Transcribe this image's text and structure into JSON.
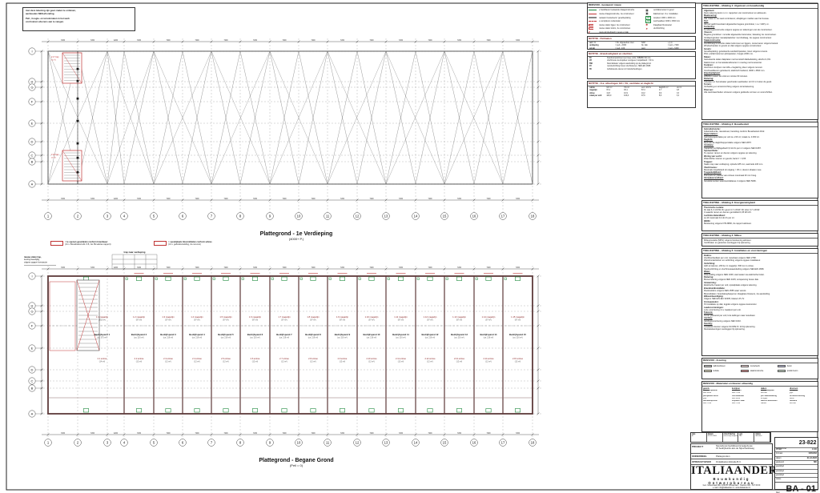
{
  "sheet": {
    "border_color": "#222222",
    "accent_red": "#c03434",
    "accent_green": "#1f8a3f",
    "wall_brown": "#5d3a3a"
  },
  "note_box": {
    "lines": [
      "Aan deze tekening zijn geen maten te ontlenen,",
      "aanhouden NEN-afronding.",
      "Peil-, hoogte- en terreinmaten in het werk",
      "controleren alvorens aan te vangen."
    ]
  },
  "plans": {
    "upper": {
      "title": "Plattegrond - 1e Verdieping",
      "subtitle": "(4000+ P.)"
    },
    "lower": {
      "title": "Plattegrond - Begane Grond",
      "subtitle": "(Peil = 0)"
    }
  },
  "grid": {
    "numbers": [
      "1",
      "2",
      "3",
      "4",
      "5",
      "6",
      "7",
      "8",
      "9",
      "10",
      "11",
      "12",
      "13",
      "14",
      "15",
      "16",
      "17",
      "18"
    ],
    "letters": [
      "I",
      "H",
      "G",
      "F",
      "E",
      "D",
      "C",
      "B",
      "A"
    ]
  },
  "dims": {
    "wide": "7200",
    "narrow": "4200"
  },
  "stair_note": {
    "table_title": "trap naar verdieping",
    "left_lines": [
      "nieuwe stalen trap,",
      "leuning tweezijdig,",
      "volgens opgave leverancier"
    ]
  },
  "red_keys": [
    {
      "line1": "= te openen geveldelen conform brandweer",
      "line2": "(t.b.v. Bouwbesluit afd. 6.8, zie RV-advies rapport)"
    },
    {
      "line1": "= opstelplaats blusmiddelen conform advies",
      "line2": "(t.b.v. gebruiksmelding, zie renvooi)"
    }
  ],
  "legend": {
    "title": "RENVOOI - bestaand / nieuw",
    "left": [
      {
        "style": "line-green",
        "label": "te handhaven bestaande draagconstructie"
      },
      {
        "style": "line-red",
        "label": "nieuwe draagconstructie, zie constructeur"
      },
      {
        "style": "line-gray",
        "label": "bestaand metselwerk / gevelbeplating"
      },
      {
        "style": "dash-red",
        "label": "te verwijderen onderdelen"
      },
      {
        "style": "bracket-red",
        "label": "nieuwe stalen ligger, zie constructeur"
      },
      {
        "style": "bracket-red",
        "label": "nieuwe stalen kolom, zie constructeur"
      },
      {
        "style": "angle-red",
        "label": "nieuw windverband in gevel en dak"
      }
    ],
    "right": [
      {
        "glyph": "▦",
        "color": "#111111",
        "label": "ventilatierooster in gevel"
      },
      {
        "glyph": "▣",
        "color": "#111111",
        "label": "dakdoorvoer t.b.v. installaties"
      },
      {
        "glyph": "LD",
        "color": "#1f8a3f",
        "box": true,
        "label": "loopdeur 1000 x 2300 mm"
      },
      {
        "glyph": "OD",
        "color": "#1f8a3f",
        "box": true,
        "label": "overheaddeur 4000 x 4500 mm"
      },
      {
        "glyph": "✱",
        "color": "#c03434",
        "label": "draagbaar blustoestel"
      },
      {
        "glyph": "➤",
        "color": "#c03434",
        "label": "vluchtrichting"
      }
    ]
  },
  "notes": [
    {
      "title": "NOTITIE - Peilmaten",
      "rows": [
        [
          "peil = 0",
          "= bk. afgewerkte vloer",
          "NAP",
          "+ p.m."
        ],
        [
          "verdieping",
          "= peil + 4000",
          "bk. dak",
          "= peil + 7200"
        ],
        [
          "terrein",
          "= peil - 100",
          "goot",
          "= peil + 6400"
        ]
      ]
    },
    {
      "title": "NOTITIE - Brandveiligheid en vluchten",
      "rows": [
        [
          "BC",
          "brandcompartiment per twee units, WBDBO 60 min."
        ],
        [
          "VR",
          "vluchtroute via loopdeur voorgevel, loopafstand < 30 m."
        ],
        [
          "BMI",
          "blusmiddelen volgens aanduiding op de plattegrond."
        ],
        [
          "NV",
          "noodverlichting boven vluchtdeuren, NEN-EN 1838."
        ],
        [
          "ZD",
          "zelfsluitende deuren in brandscheidingen."
        ]
      ]
    },
    {
      "title": "NOTITIE - O.a. afmetingen GO / VG, ventilatie en daglicht",
      "rows": [
        [
          "ruimte",
          "GO m²",
          "VG m²",
          "vent. dm³/s",
          "daglicht m²",
          "eis m²"
        ],
        [
          "magazijn",
          "97,2",
          "93,1",
          "87,4",
          "4,7",
          "2,8"
        ],
        [
          "entree",
          "11,8",
          "10,9",
          "10,2",
          "0,9",
          "0,6"
        ],
        [
          "totaal per unit",
          "109,0",
          "104,0",
          "97,6",
          "5,6",
          "3,4"
        ]
      ]
    }
  ],
  "spec_sections": [
    {
      "header": "TOELICHTING - Afdeling 1: Algemeen en bouwkundig",
      "lines": [
        "*Algemeen:",
        "Deze tekening lezen i.c.m. rapporten van constructeur en adviseurs.",
        "*Maatvoering:",
        "Alle maten in het werk controleren; afwijkingen melden aan het bureau.",
        "*Peil:",
        "Als peil geldt bovenkant afgewerkte begane grondvloer, t.o.v. NAP p.m.",
        "*Fundering:",
        "Funderingsconstructie volgens opgave en tekeningen van de constructeur.",
        "*Vloeren:",
        "Begane grondvloer: monoliet afgewerkte betonvloer, belasting zie constructeur.",
        "Verdiepingsvloer: kanaalplaatvloer met druklaag, zie opgave constructeur.",
        "*Staalconstructie:",
        "Hoofddraagconstructie stalen kolommen en liggers, conserveren volgens bestek.",
        "Windverbanden in gevels en dak volgens opgave constructeur.",
        "*Gevels:",
        "Gevelbeplating: geïsoleerde sandwichpanelen, kleur volgens renvooi.",
        "Plint: prefab betonnen plintpanelen, hoogte 2400 mm.",
        "*Daken:",
        "Geïsoleerde stalen dakplaten met kunststof dakbedekking, afschot 1,6%.",
        "Daktrimmen en hemelwaterafvoeren in overleg met leverancier.",
        "*Kozijnen:",
        "Aluminium kozijnen met HR++ beglazing, kleur volgens renvooi.",
        "Overheaddeuren geïsoleerd, elektrisch bediend, 4000 x 4500 mm.",
        "*Brandveiligheid:",
        "WBDBO tussen de units ten minste 60 minuten.",
        "*Riolering:",
        "Vuilwater en hemelwater gescheiden aanbieden tot 0,5 m buiten de gevel.",
        "*Terrein:",
        "Verharding en terreininrichting volgens terreintekening.",
        "*Diversen:",
        "Alle werkzaamheden uitvoeren volgens geldende normen en voorschriften."
      ]
    },
    {
      "header": "TOELICHTING - Afdeling 2: Bouwbesluit",
      "lines": [
        "*Gebruiksfunctie:",
        "Industriefunctie, nieuwbouw; bezetting conform Bouwbesluit 2012.",
        "*Oppervlakten:",
        "Gebruiksoppervlakte per unit ca. 216 m²; totaal ca. 3.450 m².",
        "*Daglicht:",
        "Equivalente daglichtoppervlakte volgens NEN 2057.",
        "*Ventilatie:",
        "Capaciteit verblijfsgebied 0,9 dm³/s per m² volgens NEN 1087.",
        "*Spuiventilatie:",
        "Te openen ramen en deuren volgens opgave op tekening.",
        "*Wering van vocht:",
        "Waterdichte vloeren en gevels; factor f < 0,65.",
        "*Trappen:",
        "Stalen trap naar verdieping; optrede 185 mm, aantrede 220 mm.",
        "*Vluchtroutes:",
        "Maximale loopafstand tot uitgang < 30 m; deuren draaien mee.",
        "*Toegankelijkheid:",
        "Drempels ter plaatse van entrees maximaal 20 mm hoog.",
        "*Inbraakwerendheid:",
        "Gevelelementen weerstandsklasse 2 volgens NEN 5096."
      ]
    },
    {
      "header": "TOELICHTING - Afdeling 3: Energiezuinigheid",
      "lines": [
        "*Thermische isolatie:",
        "Rc dak 6,3 m²K/W; Rc gevel 4,7 m²K/W; Rc vloer 3,7 m²K/W.",
        "U-waarde ramen en deuren gemiddeld 1,65 W/m²K.",
        "*Luchtdoorlatendheid:",
        "qv;10 maximaal 0,4 dm³/s per m².",
        "*BENG:",
        "Berekening volgens NTA 8800, zie rapport adviseur."
      ]
    },
    {
      "header": "TOELICHTING - Afdeling 4: Milieu",
      "lines": [
        "Milieuprestatie (MPG) volgens berekening adviseur.",
        "Certificaten en garanties overleggen bij oplevering."
      ]
    },
    {
      "header": "TOELICHTING - Afdeling 5: Installaties en voorzieningen",
      "lines": [
        "*Elektra:",
        "Hoofdverdeelkast per unit; meterkast volgens NEN 2768.",
        "Wandcontactdozen en verlichting volgens opgave installateur.",
        "*Verlichting:",
        "LED armaturen, 200 lux in magazijn, 500 lux in entree.",
        "Noodverlichting en vluchtrouteaanduiding volgens NEN-EN 1838.",
        "*Water:",
        "Waterleiding volgens NEN 1006; warmwater via elektrische boiler.",
        "*Riolering:",
        "Binnenriolering volgens NEN 3215; ontspanning boven dak.",
        "*Verwarming:",
        "Elektrische heater per unit; opstelplaats volgens tekening.",
        "*Brandmeldinstallatie:",
        "Rookmelders volgens NEN 2555 waar vereist.",
        "Blusmiddelen: brandslanghaspel en draagbare blussers, zie aanduiding.",
        "*Bliksembeveiliging:",
        "Volgens NEN-EN-IEC 62305, klasse LPL IV.",
        "*Zonnepanelen:",
        "PV-installatie op dak, legplan volgens opgave leverancier.",
        "*Laadvoorzieningen:",
        "Loze voorziening t.b.v. laadpunt per unit.",
        "*Telecom:",
        "Invoer glasvezel per unit; loze leidingen naar meterkast.",
        "*Aarding:",
        "Aardingsvoorziening volgens NEN 1010.",
        "*Keuring:",
        "Installaties keuren volgens SCOPE 8 / 10 bij oplevering.",
        "Revisietekeningen overleggen bij oplevering."
      ]
    }
  ],
  "hatch_legend": {
    "header": "RENVOOI - Arcering",
    "items": [
      {
        "color": "#c9c9c9",
        "label": "kalkzandsteen"
      },
      {
        "color": "#f0d5d5",
        "label": "metselwerk"
      },
      {
        "color": "#b9b9d6",
        "label": "beton"
      },
      {
        "color": "#efe9c8",
        "label": "isolatie"
      },
      {
        "color": "#dd8888",
        "label": "staalconstructie"
      },
      {
        "color": "#cfe3cf",
        "label": "prefab beton"
      }
    ]
  },
  "materials": {
    "header": "RENVOOI - Materialen en kleuren uitwendig",
    "columns": [
      {
        "title": "gevels",
        "items": [
          "sandwichpaneel",
          "RAL 9002",
          "plintpaneel beton",
          "grijs",
          "damwandprofiel",
          "RAL 7016"
        ]
      },
      {
        "title": "kozijnen",
        "items": [
          "aluminium",
          "RAL 7016",
          "overheaddeur",
          "RAL 9002",
          "loopdeur staal",
          "RAL 7016"
        ]
      },
      {
        "title": "daken",
        "items": [
          "stalen dakplaat",
          "verzinkt",
          "pvc dakbedekking",
          "lichtgrijs",
          "daktrim aluminium",
          "naturel"
        ]
      },
      {
        "title": "diversen",
        "items": [
          "hwa pvc",
          "grijs",
          "terreinverharding",
          "beton",
          "hekwerk",
          "verzinkt"
        ]
      }
    ]
  },
  "units": [
    {
      "m": "1.1 magazijn",
      "ma": "(352 m²)",
      "n": "Bedrijfspand 1",
      "na": "(ca. 375 m²)",
      "e": "2.1 entree",
      "ea": "(14 m²)"
    },
    {
      "m": "1.2 magazijn",
      "ma": "(97 m²)",
      "n": "Bedrijfspand 2",
      "na": "(ca. 216 m²)",
      "e": "2.2 entree",
      "ea": "(12 m²)"
    },
    {
      "m": "1.3 magazijn",
      "ma": "(97 m²)",
      "n": "Bedrijfspand 3",
      "na": "(ca. 216 m²)",
      "e": "2.3 entree",
      "ea": "(12 m²)"
    },
    {
      "m": "1.4 magazijn",
      "ma": "(97 m²)",
      "n": "Bedrijfspand 4",
      "na": "(ca. 216 m²)",
      "e": "2.4 entree",
      "ea": "(12 m²)"
    },
    {
      "m": "1.5 magazijn",
      "ma": "(97 m²)",
      "n": "Bedrijfspand 5",
      "na": "(ca. 216 m²)",
      "e": "2.5 entree",
      "ea": "(12 m²)"
    },
    {
      "m": "1.6 magazijn",
      "ma": "(97 m²)",
      "n": "Bedrijfspand 6",
      "na": "(ca. 216 m²)",
      "e": "2.6 entree",
      "ea": "(12 m²)"
    },
    {
      "m": "1.7 magazijn",
      "ma": "(97 m²)",
      "n": "Bedrijfspand 7",
      "na": "(ca. 216 m²)",
      "e": "2.7 entree",
      "ea": "(12 m²)"
    },
    {
      "m": "1.8 magazijn",
      "ma": "(97 m²)",
      "n": "Bedrijfspand 8",
      "na": "(ca. 216 m²)",
      "e": "2.8 entree",
      "ea": "(12 m²)"
    },
    {
      "m": "1.9 magazijn",
      "ma": "(97 m²)",
      "n": "Bedrijfspand 9",
      "na": "(ca. 216 m²)",
      "e": "2.9 entree",
      "ea": "(12 m²)"
    },
    {
      "m": "1.10 magazijn",
      "ma": "(97 m²)",
      "n": "Bedrijfspand 10",
      "na": "(ca. 216 m²)",
      "e": "2.10 entree",
      "ea": "(12 m²)"
    },
    {
      "m": "1.11 magazijn",
      "ma": "(97 m²)",
      "n": "Bedrijfspand 11",
      "na": "(ca. 216 m²)",
      "e": "2.11 entree",
      "ea": "(12 m²)"
    },
    {
      "m": "1.12 magazijn",
      "ma": "(97 m²)",
      "n": "Bedrijfspand 12",
      "na": "(ca. 216 m²)",
      "e": "2.12 entree",
      "ea": "(12 m²)"
    },
    {
      "m": "1.13 magazijn",
      "ma": "(97 m²)",
      "n": "Bedrijfspand 13",
      "na": "(ca. 216 m²)",
      "e": "2.13 entree",
      "ea": "(12 m²)"
    },
    {
      "m": "1.14 magazijn",
      "ma": "(97 m²)",
      "n": "Bedrijfspand 14",
      "na": "(ca. 216 m²)",
      "e": "2.14 entree",
      "ea": "(12 m²)"
    },
    {
      "m": "1.15 magazijn",
      "ma": "(97 m²)",
      "n": "Bedrijfspand 15",
      "na": "(ca. 216 m²)",
      "e": "2.15 entree",
      "ea": "(12 m²)"
    }
  ],
  "title_block": {
    "revisions": [
      {
        "label": "wijz.",
        "value": "A"
      },
      {
        "label": "datum",
        "value": "00-00-0000"
      },
      {
        "label": "omschrijving",
        "value": "aanvraag omgevingsvergunning"
      },
      {
        "label": "get.",
        "value": "MK"
      },
      {
        "label": "status",
        "value": "definitief"
      }
    ],
    "project_label": "PROJECT",
    "project_value_1": "Nieuwbouw bedrijfsverzamelgebouw,",
    "project_value_2": "15 bedrijfsunits aan de Nijverheidsweg",
    "onderdeel_label": "ONDERDEEL",
    "onderdeel_value": "Plattegronden",
    "opdrachtgever_label": "OPDRACHTGEVER",
    "opdrachtgever_value": "Ontwikkelcombinatie B.V.",
    "logo": "ITALIAANDER",
    "logo_sub": "Bouwkundig Ontwerpbureau",
    "address_1": "Gen. Vetterstraat 43E, 1059 BT Amsterdam - Telefoon 020 - 617 00 00",
    "address_2": "e-mail: info@italiaander.nl - www.italiaander.nl",
    "werknummer_label": "werknummer",
    "werknummer": "23-822",
    "fields": [
      {
        "label": "schaal",
        "value": "1:100"
      },
      {
        "label": "formaat",
        "value": "1100x594"
      },
      {
        "label": "datum",
        "value": "21-12-2023"
      },
      {
        "label": "getekend",
        "value": "MK"
      },
      {
        "label": "gewijzigd",
        "value": "-"
      },
      {
        "label": "gewijzigd",
        "value": "-"
      },
      {
        "label": "gewijzigd",
        "value": "-"
      },
      {
        "label": "status",
        "value": "-"
      }
    ],
    "blad_label": "blad",
    "sheet_no": "BA - 01"
  }
}
